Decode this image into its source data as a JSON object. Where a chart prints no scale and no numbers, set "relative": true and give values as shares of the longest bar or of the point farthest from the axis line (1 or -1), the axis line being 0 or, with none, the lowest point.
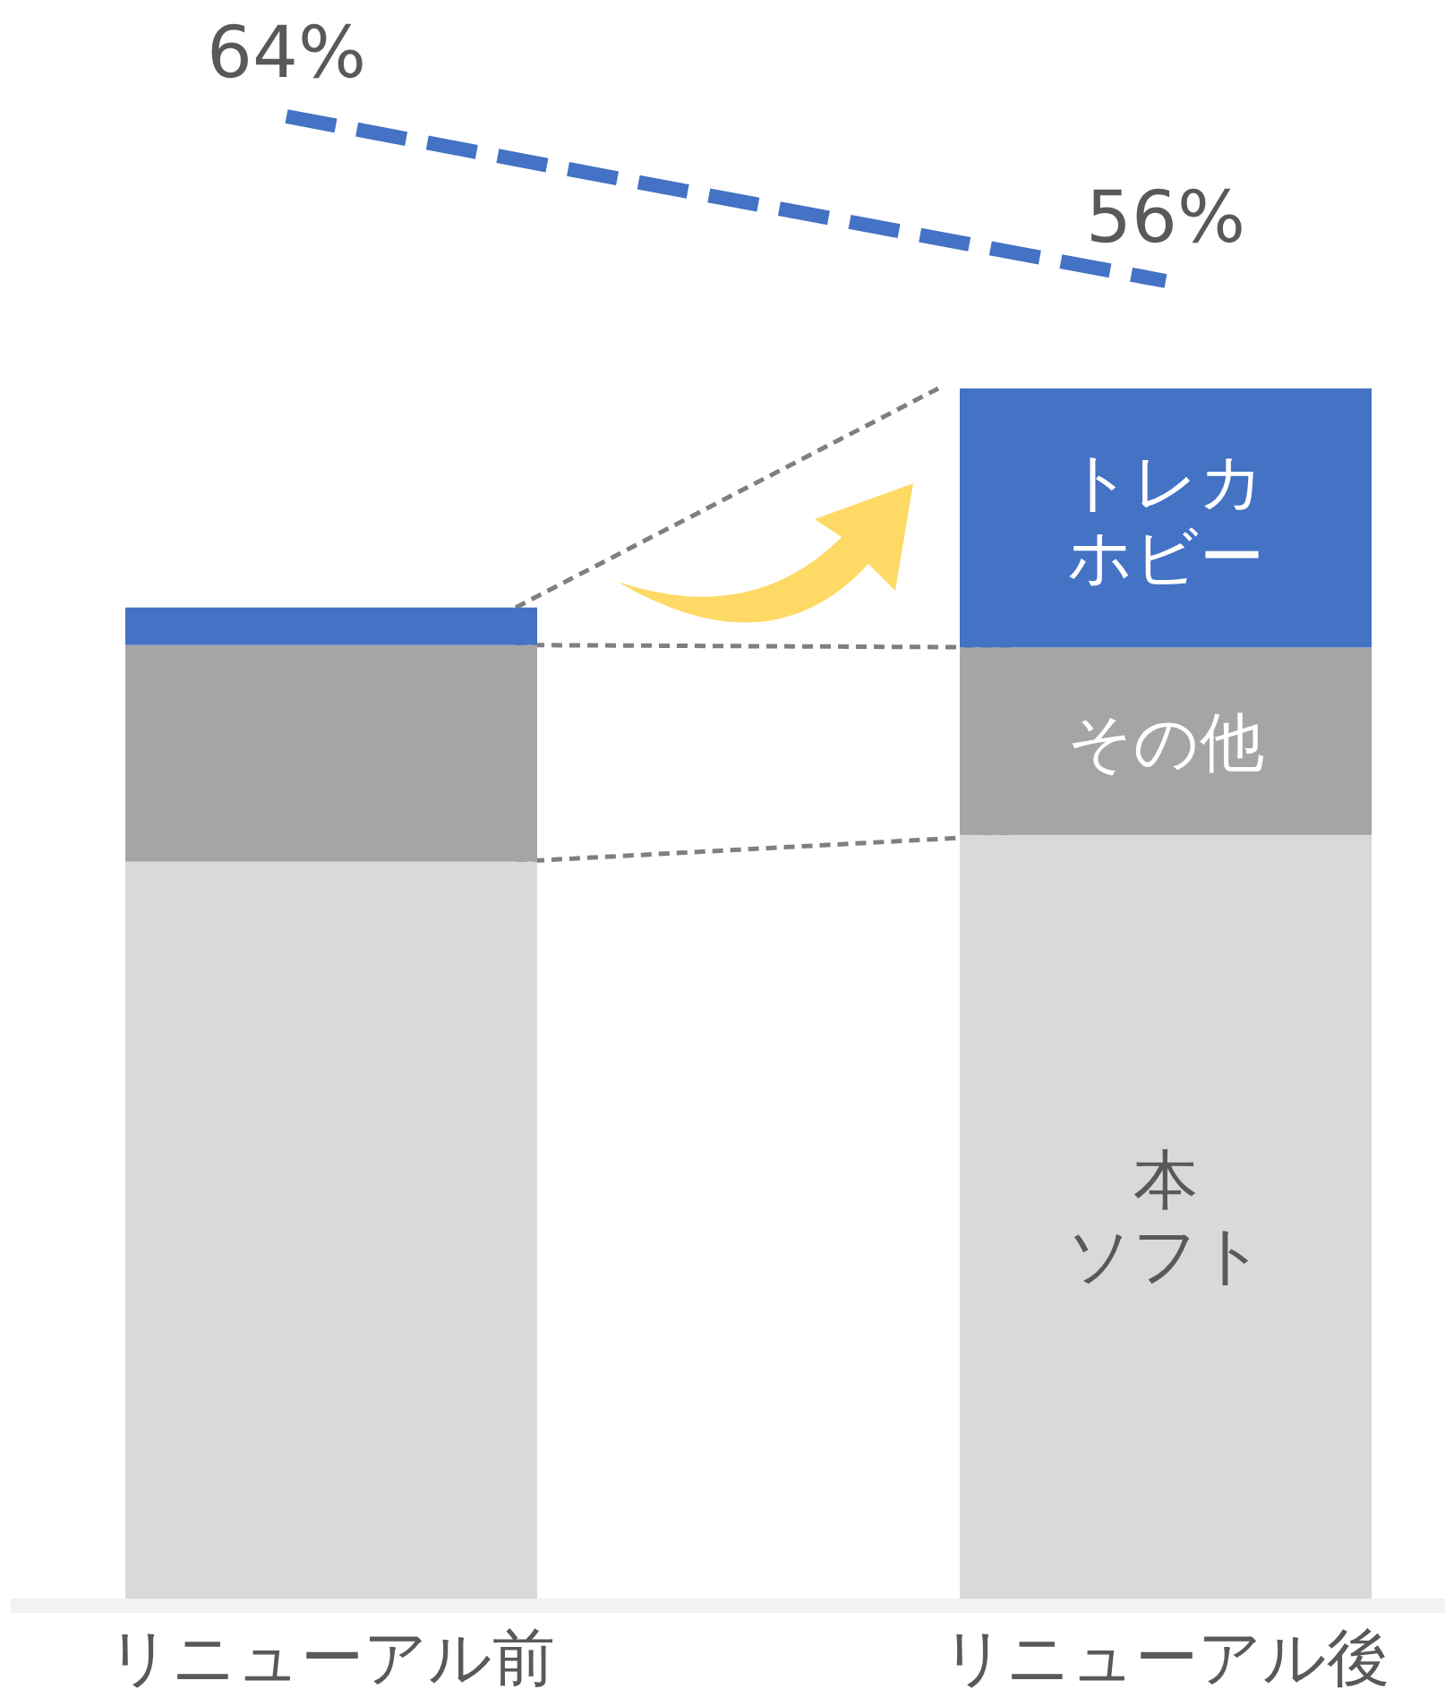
{
  "chart_data": [
    {
      "type": "bar",
      "stacked": true,
      "relative": true,
      "categories": [
        "リニューアル前",
        "リニューアル後"
      ],
      "series": [
        {
          "name": "本ソフト",
          "color": "#d9d9d9",
          "values": [
            0.609,
            0.631
          ]
        },
        {
          "name": "その他",
          "color": "#a5a5a5",
          "values": [
            0.179,
            0.155
          ]
        },
        {
          "name": "トレカホビー",
          "color": "#4472c4",
          "values": [
            0.031,
            0.214
          ]
        }
      ]
    },
    {
      "type": "line",
      "categories": [
        null,
        null
      ],
      "line_style": "dashed",
      "marker": "none",
      "color": "#4472c4",
      "values": [
        64,
        56
      ],
      "value_labels": [
        "64%",
        "56%"
      ]
    }
  ]
}
